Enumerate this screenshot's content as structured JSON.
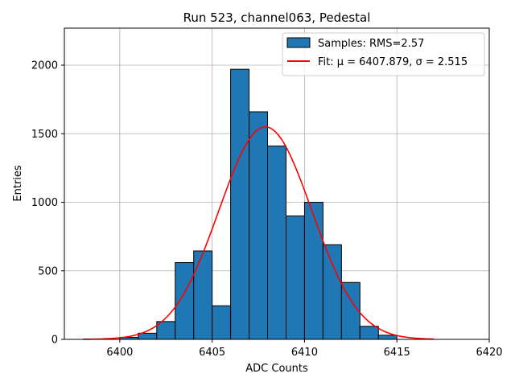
{
  "chart_data": {
    "type": "bar",
    "title": "Run 523, channel063, Pedestal",
    "xlabel": "ADC Counts",
    "ylabel": "Entries",
    "xlim": [
      6397,
      6420
    ],
    "ylim": [
      0,
      2270
    ],
    "xticks": [
      6400,
      6405,
      6410,
      6415,
      6420
    ],
    "yticks": [
      0,
      500,
      1000,
      1500,
      2000
    ],
    "grid": true,
    "legend_position": "top-right",
    "histogram": {
      "name": "Samples: RMS=2.57",
      "color": "#1f77b4",
      "edgecolor": "#000000",
      "bin_edges": [
        6400,
        6401,
        6402,
        6403,
        6404,
        6405,
        6406,
        6407,
        6408,
        6409,
        6410,
        6411,
        6412,
        6413,
        6414,
        6415
      ],
      "counts": [
        15,
        45,
        130,
        560,
        645,
        245,
        1970,
        1660,
        1410,
        900,
        1000,
        690,
        415,
        95,
        30
      ]
    },
    "fit": {
      "name": "Fit: μ = 6407.879, σ = 2.515",
      "color": "#ff0000",
      "mu": 6407.879,
      "sigma": 2.515,
      "amplitude": 1550,
      "x_range": [
        6398,
        6417
      ]
    }
  }
}
